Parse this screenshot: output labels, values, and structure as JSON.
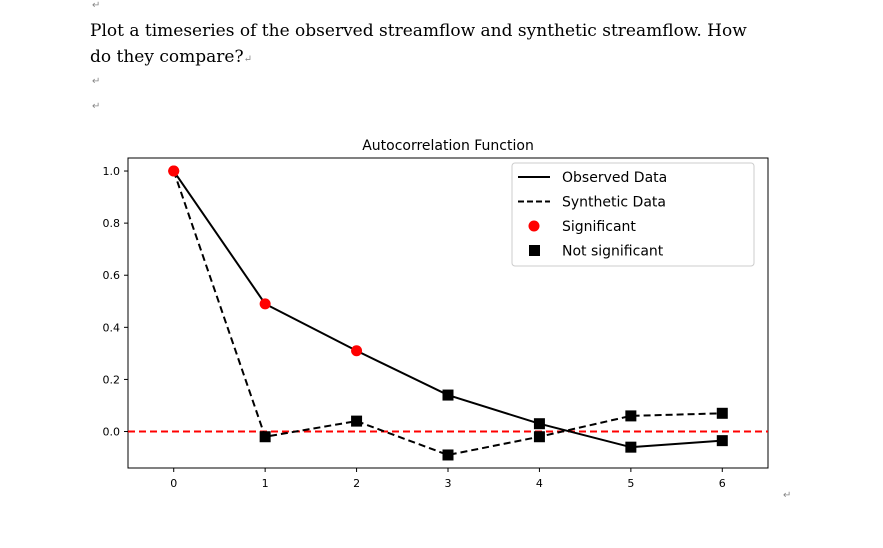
{
  "document": {
    "question": "Plot a timeseries of the observed streamflow and synthetic streamflow. How do they compare?",
    "paragraph_mark": "↵"
  },
  "chart_data": {
    "type": "line",
    "title": "Autocorrelation Function",
    "xlabel": "",
    "ylabel": "",
    "x": [
      0,
      1,
      2,
      3,
      4,
      5,
      6
    ],
    "xlim": [
      -0.5,
      6.5
    ],
    "ylim": [
      -0.14,
      1.05
    ],
    "xticks": [
      "0",
      "1",
      "2",
      "3",
      "4",
      "5",
      "6"
    ],
    "yticks": [
      "0.0",
      "0.2",
      "0.4",
      "0.6",
      "0.8",
      "1.0"
    ],
    "grid": false,
    "legend_placement": "top-right",
    "series": [
      {
        "name": "Observed Data",
        "style": "solid",
        "color": "#000000",
        "values": [
          1.0,
          0.49,
          0.31,
          0.14,
          0.03,
          -0.06,
          -0.035
        ],
        "significant": [
          true,
          true,
          true,
          false,
          false,
          false,
          false
        ]
      },
      {
        "name": "Synthetic Data",
        "style": "dashed",
        "color": "#000000",
        "values": [
          1.0,
          -0.02,
          0.04,
          -0.09,
          -0.02,
          0.06,
          0.07
        ],
        "significant": [
          true,
          false,
          false,
          false,
          false,
          false,
          false
        ]
      }
    ],
    "markers": {
      "significant": {
        "label": "Significant",
        "shape": "circle",
        "color": "#ff0000"
      },
      "not_significant": {
        "label": "Not significant",
        "shape": "square",
        "color": "#000000"
      }
    },
    "reference_line": {
      "y": 0.0,
      "color": "#ff0000",
      "style": "dashed"
    }
  }
}
